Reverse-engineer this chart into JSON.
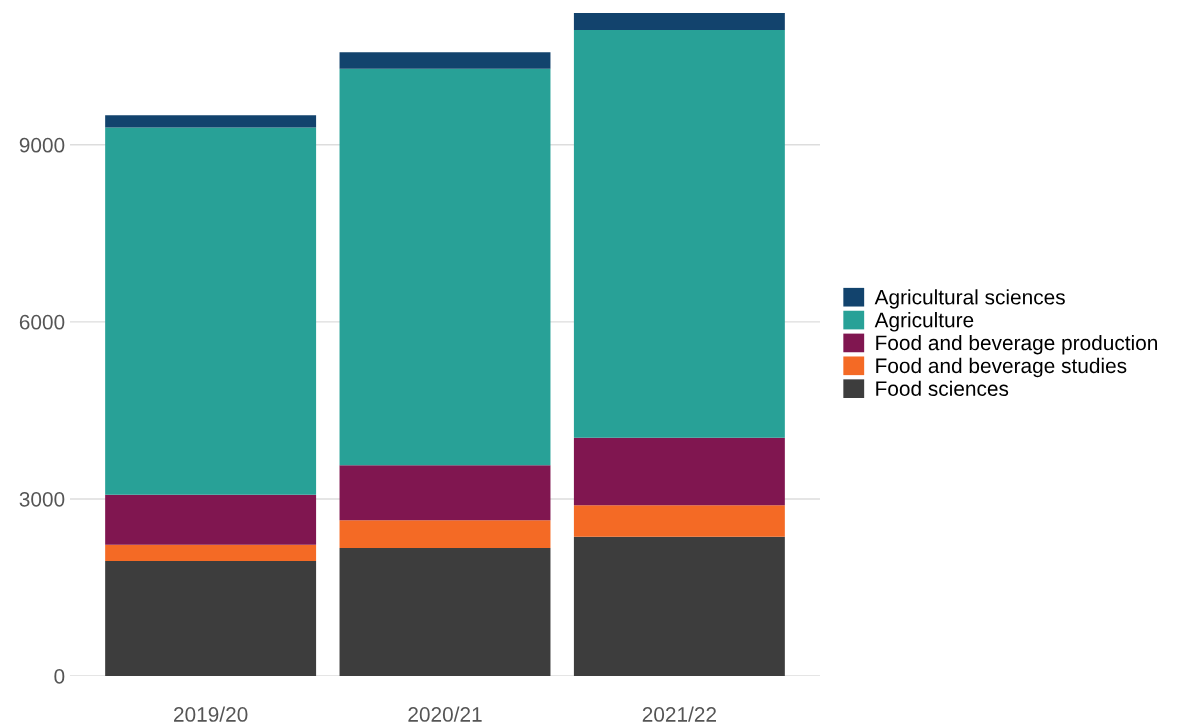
{
  "chart_data": {
    "type": "bar",
    "stacked": true,
    "categories": [
      "2019/20",
      "2020/21",
      "2021/22"
    ],
    "series": [
      {
        "name": "Food sciences",
        "color": "#3d3d3d",
        "values": [
          1950,
          2170,
          2360
        ]
      },
      {
        "name": "Food and beverage studies",
        "color": "#f46a25",
        "values": [
          275,
          470,
          535
        ]
      },
      {
        "name": "Food and beverage production",
        "color": "#801650",
        "values": [
          845,
          930,
          1140
        ]
      },
      {
        "name": "Agriculture",
        "color": "#28a197",
        "values": [
          6225,
          6720,
          6910
        ]
      },
      {
        "name": "Agricultural sciences",
        "color": "#12436d",
        "values": [
          205,
          280,
          290
        ]
      }
    ],
    "ylim": [
      0,
      11250
    ],
    "yticks": [
      0,
      3000,
      6000,
      9000
    ],
    "grid": "y",
    "legend": "right"
  }
}
